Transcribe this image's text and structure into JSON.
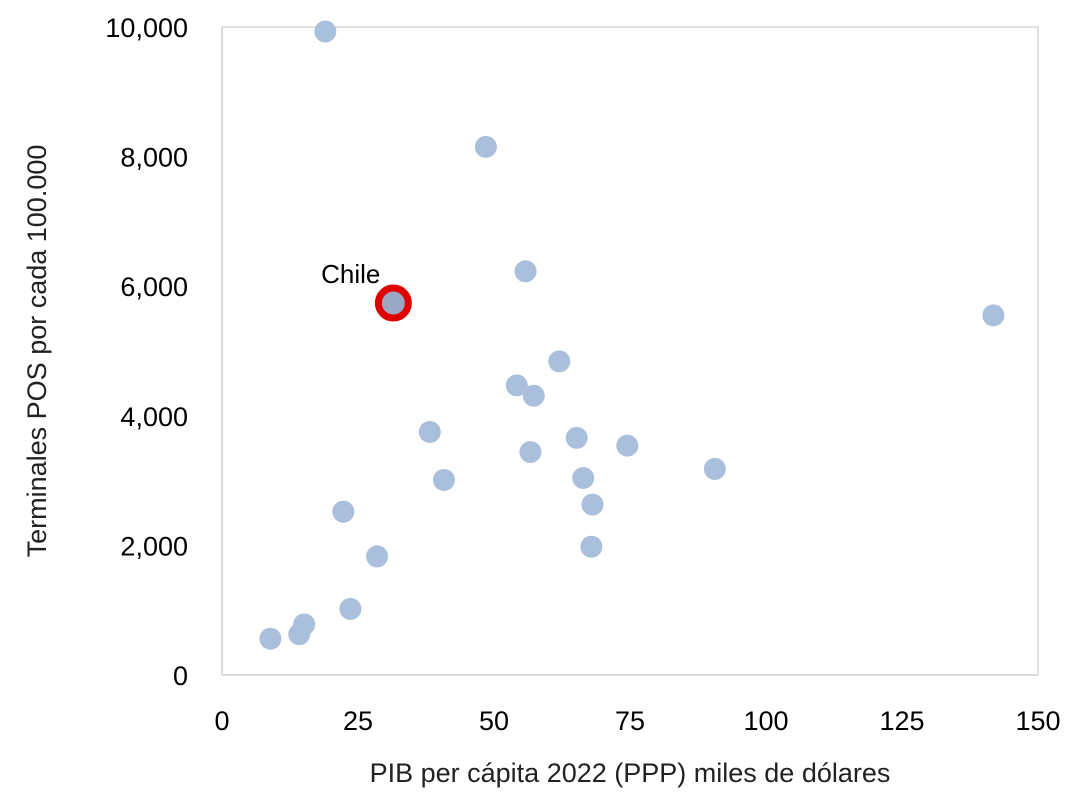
{
  "chart_data": {
    "type": "scatter",
    "title": "",
    "xlabel": "PIB per cápita 2022 (PPP) miles de dólares",
    "ylabel": "Terminales POS por cada 100.000",
    "xlim": [
      0,
      150
    ],
    "ylim": [
      0,
      10000
    ],
    "x_ticks": [
      {
        "value": 0,
        "label": "0"
      },
      {
        "value": 25,
        "label": "25"
      },
      {
        "value": 50,
        "label": "50"
      },
      {
        "value": 75,
        "label": "75"
      },
      {
        "value": 100,
        "label": "100"
      },
      {
        "value": 125,
        "label": "125"
      },
      {
        "value": 150,
        "label": "150"
      }
    ],
    "y_ticks": [
      {
        "value": 0,
        "label": "0"
      },
      {
        "value": 2000,
        "label": "2,000"
      },
      {
        "value": 4000,
        "label": "4,000"
      },
      {
        "value": 6000,
        "label": "6,000"
      },
      {
        "value": 8000,
        "label": "8,000"
      },
      {
        "value": 10000,
        "label": "10,000"
      }
    ],
    "grid": false,
    "legend": "none",
    "colors": {
      "points": "#a9bfdc",
      "highlight_fill": "#9aa8c6",
      "highlight_ring": "#e00000",
      "plot_border": "#d9d9d9"
    },
    "points": [
      {
        "x": 19,
        "y": 9930
      },
      {
        "x": 48.5,
        "y": 8150
      },
      {
        "x": 55.8,
        "y": 6230
      },
      {
        "x": 141.8,
        "y": 5550
      },
      {
        "x": 62,
        "y": 4840
      },
      {
        "x": 54.2,
        "y": 4470
      },
      {
        "x": 57.3,
        "y": 4310
      },
      {
        "x": 38.2,
        "y": 3750
      },
      {
        "x": 65.2,
        "y": 3660
      },
      {
        "x": 74.5,
        "y": 3540
      },
      {
        "x": 56.7,
        "y": 3440
      },
      {
        "x": 90.6,
        "y": 3180
      },
      {
        "x": 66.4,
        "y": 3040
      },
      {
        "x": 40.8,
        "y": 3010
      },
      {
        "x": 68.1,
        "y": 2630
      },
      {
        "x": 22.3,
        "y": 2520
      },
      {
        "x": 67.9,
        "y": 1980
      },
      {
        "x": 28.5,
        "y": 1830
      },
      {
        "x": 23.6,
        "y": 1020
      },
      {
        "x": 15.1,
        "y": 780
      },
      {
        "x": 14.2,
        "y": 630
      },
      {
        "x": 8.9,
        "y": 560
      }
    ],
    "highlight": {
      "label": "Chile",
      "x": 31.5,
      "y": 5740
    }
  }
}
